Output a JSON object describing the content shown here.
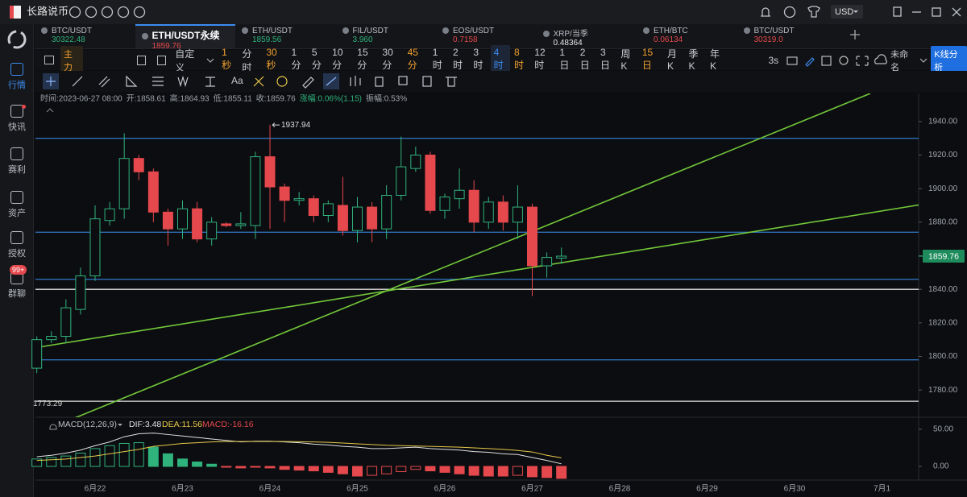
{
  "app": {
    "name": "长路说币",
    "currency": "USD"
  },
  "sidebar": [
    {
      "label": "行情",
      "active": true
    },
    {
      "label": "快讯",
      "dot": true
    },
    {
      "label": "赛利"
    },
    {
      "label": "资产"
    },
    {
      "label": "授权"
    },
    {
      "label": "群聊",
      "badge": "99+"
    }
  ],
  "tabs": [
    {
      "symbol": "BTC/USDT",
      "price": "30322.48",
      "trend": "up"
    },
    {
      "symbol": "ETH/USDT永续",
      "price": "1859.76",
      "trend": "down",
      "active": true
    },
    {
      "symbol": "ETH/USDT",
      "price": "1859.56",
      "trend": "up"
    },
    {
      "symbol": "FIL/USDT",
      "price": "3.960",
      "trend": "up"
    },
    {
      "symbol": "EOS/USDT",
      "price": "0.7158",
      "trend": "down"
    },
    {
      "symbol": "XRP/当季",
      "price": "0.48364",
      "trend": "flat"
    },
    {
      "symbol": "ETH/BTC",
      "price": "0.06134",
      "trend": "down"
    },
    {
      "symbol": "BTC/USDT",
      "price": "30319.0",
      "trend": "down"
    }
  ],
  "toolbar": {
    "main": "主力",
    "custom": "自定义",
    "timeframes": [
      {
        "label": "1秒",
        "state": "starred"
      },
      {
        "label": "分时"
      },
      {
        "label": "30秒",
        "state": "starred"
      },
      {
        "label": "1分"
      },
      {
        "label": "5分"
      },
      {
        "label": "10分"
      },
      {
        "label": "15分"
      },
      {
        "label": "30分"
      },
      {
        "label": "45分",
        "state": "starred"
      },
      {
        "label": "1时"
      },
      {
        "label": "2时"
      },
      {
        "label": "3时"
      },
      {
        "label": "4时",
        "state": "active"
      },
      {
        "label": "8时",
        "state": "starred"
      },
      {
        "label": "12时"
      },
      {
        "label": "1日"
      },
      {
        "label": "2日"
      },
      {
        "label": "3日"
      },
      {
        "label": "周K"
      },
      {
        "label": "15日",
        "state": "starred"
      },
      {
        "label": "月K"
      },
      {
        "label": "季K"
      },
      {
        "label": "年K"
      }
    ],
    "refresh": "3s",
    "layout": "未命名",
    "analysis": "K线分析"
  },
  "tools": {
    "text": "Aa"
  },
  "chart_data": {
    "type": "candlestick",
    "info": [
      "时间:2023-06-27 08:00",
      "开:1858.61",
      "高:1864.93",
      "低:1855.11",
      "收:1859.76",
      "涨幅:0.06%(1.15)",
      "振幅:0.53%"
    ],
    "x_labels": [
      "6月22",
      "6月23",
      "6月24",
      "6月25",
      "6月26",
      "6月27",
      "6月28",
      "6月29",
      "6月30",
      "7月1"
    ],
    "candles": {
      "open": [
        1793,
        1810,
        1812,
        1828,
        1848,
        1881,
        1888,
        1918,
        1910,
        1886,
        1876,
        1888,
        1870,
        1879,
        1878,
        1878,
        1919,
        1901,
        1893,
        1894,
        1884,
        1890,
        1875,
        1889,
        1876,
        1896,
        1912,
        1920,
        1887,
        1894,
        1899,
        1880,
        1892,
        1880,
        1889,
        1854,
        1858.61
      ],
      "high": [
        1812,
        1815,
        1834,
        1853,
        1890,
        1892,
        1933,
        1920,
        1912,
        1888,
        1893,
        1892,
        1883,
        1880,
        1886,
        1922,
        1937.94,
        1903,
        1898,
        1896,
        1893,
        1907,
        1895,
        1892,
        1902,
        1931,
        1925,
        1922,
        1897,
        1912,
        1905,
        1895,
        1896,
        1902,
        1891,
        1862,
        1864.93
      ],
      "low": [
        1790,
        1808,
        1808,
        1825,
        1845,
        1878,
        1882,
        1905,
        1880,
        1866,
        1870,
        1868,
        1866,
        1877,
        1876,
        1870,
        1876,
        1880,
        1890,
        1880,
        1880,
        1872,
        1868,
        1868,
        1870,
        1893,
        1910,
        1885,
        1882,
        1888,
        1874,
        1876,
        1875,
        1870,
        1836,
        1847,
        1855.11
      ],
      "close": [
        1810,
        1812,
        1829,
        1848,
        1882,
        1888,
        1918,
        1910,
        1886,
        1876,
        1888,
        1870,
        1880,
        1878,
        1879,
        1919,
        1901,
        1893,
        1894,
        1884,
        1891,
        1875,
        1889,
        1876,
        1896,
        1913,
        1920,
        1887,
        1895,
        1899,
        1880,
        1892,
        1880,
        1889,
        1854,
        1859,
        1859.76
      ]
    },
    "color_up": "#2fb27c",
    "color_down": "#e5484d",
    "ylim": [
      1770,
      1950
    ],
    "yticks": [
      {
        "value": 1940,
        "label": "1940.00"
      },
      {
        "value": 1920,
        "label": "1920.00"
      },
      {
        "value": 1900,
        "label": "1900.00"
      },
      {
        "value": 1880,
        "label": "1880.00"
      },
      {
        "value": 1860,
        "label": "1860.00"
      },
      {
        "value": 1840,
        "label": "1840.00"
      },
      {
        "value": 1820,
        "label": "1820.00"
      },
      {
        "value": 1800,
        "label": "1800.00"
      },
      {
        "value": 1780,
        "label": "1780.00"
      }
    ],
    "hlines": [
      {
        "value": 1930,
        "color": "#2f6fb8"
      },
      {
        "value": 1874,
        "color": "#2f6fb8"
      },
      {
        "value": 1846,
        "color": "#2f6fb8"
      },
      {
        "value": 1798,
        "color": "#2f6fb8"
      },
      {
        "value": 1840,
        "color": "#e4e4e4"
      },
      {
        "value": 1773.29,
        "color": "#e4e4e4",
        "labeled": true
      }
    ],
    "high_marker": 1937.94,
    "last_price": 1859.76,
    "macd": {
      "legend": "MACD(12,26,9)",
      "dif_label": "DIF:3.48",
      "dea_label": "DEA:11.56",
      "macd_label": "MACD:-16.16",
      "ylim": [
        -18,
        64
      ],
      "yticks": [
        {
          "value": 50,
          "label": "50.00"
        },
        {
          "value": 0,
          "label": "0.00"
        }
      ],
      "hist": [
        10,
        12,
        14,
        18,
        24,
        28,
        31,
        32,
        26,
        17,
        10,
        6,
        3,
        -1,
        -2,
        -1,
        -2,
        -4,
        -5,
        -6,
        -8,
        -10,
        -13,
        -12,
        -10,
        -7,
        -4,
        -6,
        -8,
        -10,
        -12,
        -13,
        -13,
        -12,
        -14,
        -15,
        -16.16
      ],
      "dif": [
        13,
        15,
        18,
        22,
        28,
        33,
        40,
        44,
        45,
        43,
        41,
        39,
        37,
        35,
        33,
        34,
        34,
        33,
        32,
        30,
        29,
        27,
        26,
        24,
        24,
        25,
        26,
        24,
        23,
        22,
        20,
        19,
        17,
        16,
        12,
        8,
        3.48
      ],
      "dea": [
        8,
        9,
        10,
        12,
        14,
        17,
        20,
        23,
        27,
        29,
        31,
        32,
        33,
        33.5,
        33.5,
        33.5,
        33.6,
        33.5,
        33.3,
        33,
        32.5,
        31.5,
        30.5,
        29.5,
        28.5,
        28,
        27.5,
        27,
        26.5,
        26,
        25,
        24,
        23,
        21.5,
        19.5,
        15,
        11.56
      ],
      "dif_color": "#e0e0e0",
      "dea_color": "#e6c84a"
    }
  }
}
